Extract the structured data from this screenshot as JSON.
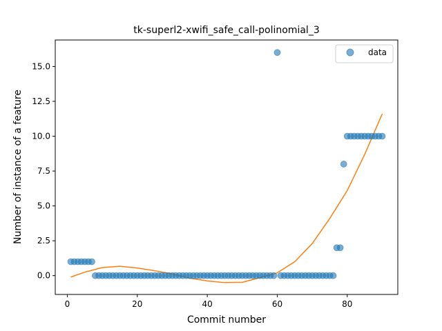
{
  "chart_data": {
    "type": "scatter",
    "title": "tk-superl2-xwifi_safe_call-polinomial_3",
    "xlabel": "Commit number",
    "ylabel": "Number of instance of a feature",
    "xlim": [
      -3.45,
      94.45
    ],
    "ylim": [
      -1.35,
      16.9
    ],
    "x_ticks": [
      0,
      20,
      40,
      60,
      80
    ],
    "x_tick_labels": [
      "0",
      "20",
      "40",
      "60",
      "80"
    ],
    "y_ticks": [
      0.0,
      2.5,
      5.0,
      7.5,
      10.0,
      12.5,
      15.0
    ],
    "y_tick_labels": [
      "0.0",
      "2.5",
      "5.0",
      "7.5",
      "10.0",
      "12.5",
      "15.0"
    ],
    "grid": false,
    "legend_position": "top-right",
    "series": [
      {
        "name": "data",
        "kind": "scatter",
        "color": "#1f77b4",
        "alpha": 0.6,
        "points": [
          [
            1,
            1
          ],
          [
            2,
            1
          ],
          [
            3,
            1
          ],
          [
            4,
            1
          ],
          [
            5,
            1
          ],
          [
            6,
            1
          ],
          [
            7,
            1
          ],
          [
            8,
            0
          ],
          [
            9,
            0
          ],
          [
            10,
            0
          ],
          [
            11,
            0
          ],
          [
            12,
            0
          ],
          [
            13,
            0
          ],
          [
            14,
            0
          ],
          [
            15,
            0
          ],
          [
            16,
            0
          ],
          [
            17,
            0
          ],
          [
            18,
            0
          ],
          [
            19,
            0
          ],
          [
            20,
            0
          ],
          [
            21,
            0
          ],
          [
            22,
            0
          ],
          [
            23,
            0
          ],
          [
            24,
            0
          ],
          [
            25,
            0
          ],
          [
            26,
            0
          ],
          [
            27,
            0
          ],
          [
            28,
            0
          ],
          [
            29,
            0
          ],
          [
            30,
            0
          ],
          [
            31,
            0
          ],
          [
            32,
            0
          ],
          [
            33,
            0
          ],
          [
            34,
            0
          ],
          [
            35,
            0
          ],
          [
            36,
            0
          ],
          [
            37,
            0
          ],
          [
            38,
            0
          ],
          [
            39,
            0
          ],
          [
            40,
            0
          ],
          [
            41,
            0
          ],
          [
            42,
            0
          ],
          [
            43,
            0
          ],
          [
            44,
            0
          ],
          [
            45,
            0
          ],
          [
            46,
            0
          ],
          [
            47,
            0
          ],
          [
            48,
            0
          ],
          [
            49,
            0
          ],
          [
            50,
            0
          ],
          [
            51,
            0
          ],
          [
            52,
            0
          ],
          [
            53,
            0
          ],
          [
            54,
            0
          ],
          [
            55,
            0
          ],
          [
            56,
            0
          ],
          [
            57,
            0
          ],
          [
            58,
            0
          ],
          [
            59,
            0
          ],
          [
            60,
            16
          ],
          [
            61,
            0
          ],
          [
            62,
            0
          ],
          [
            63,
            0
          ],
          [
            64,
            0
          ],
          [
            65,
            0
          ],
          [
            66,
            0
          ],
          [
            67,
            0
          ],
          [
            68,
            0
          ],
          [
            69,
            0
          ],
          [
            70,
            0
          ],
          [
            71,
            0
          ],
          [
            72,
            0
          ],
          [
            73,
            0
          ],
          [
            74,
            0
          ],
          [
            75,
            0
          ],
          [
            76,
            0
          ],
          [
            77,
            2
          ],
          [
            78,
            2
          ],
          [
            79,
            8
          ],
          [
            80,
            10
          ],
          [
            81,
            10
          ],
          [
            82,
            10
          ],
          [
            83,
            10
          ],
          [
            84,
            10
          ],
          [
            85,
            10
          ],
          [
            86,
            10
          ],
          [
            87,
            10
          ],
          [
            88,
            10
          ],
          [
            89,
            10
          ],
          [
            90,
            10
          ]
        ]
      },
      {
        "kind": "line",
        "color": "#ff7f0e",
        "curve_points": [
          [
            1,
            -0.1
          ],
          [
            5,
            0.25
          ],
          [
            10,
            0.58
          ],
          [
            15,
            0.67
          ],
          [
            20,
            0.55
          ],
          [
            25,
            0.35
          ],
          [
            30,
            0.12
          ],
          [
            35,
            -0.18
          ],
          [
            40,
            -0.38
          ],
          [
            45,
            -0.5
          ],
          [
            50,
            -0.48
          ],
          [
            55,
            -0.15
          ],
          [
            60,
            0.2
          ],
          [
            65,
            1.0
          ],
          [
            70,
            2.3
          ],
          [
            75,
            4.1
          ],
          [
            80,
            6.1
          ],
          [
            85,
            8.7
          ],
          [
            90,
            11.6
          ]
        ]
      }
    ]
  }
}
